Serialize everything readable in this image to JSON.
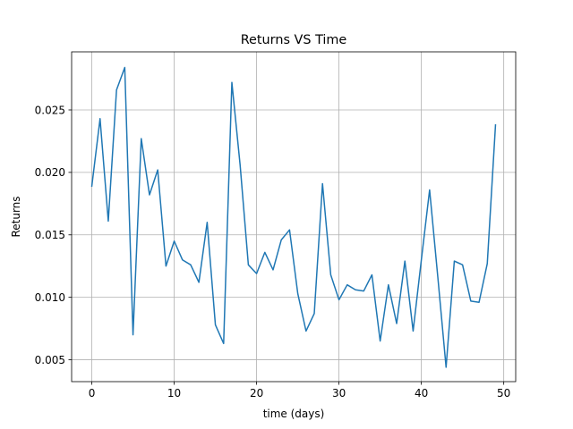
{
  "chart_data": {
    "type": "line",
    "title": "Returns VS Time",
    "xlabel": "time (days)",
    "ylabel": "Returns",
    "xlim": [
      -2.45,
      51.45
    ],
    "ylim": [
      0.00325,
      0.02965
    ],
    "x_ticks": [
      0,
      10,
      20,
      30,
      40,
      50
    ],
    "x_tick_labels": [
      "0",
      "10",
      "20",
      "30",
      "40",
      "50"
    ],
    "y_ticks": [
      0.005,
      0.01,
      0.015,
      0.02,
      0.025
    ],
    "y_tick_labels": [
      "0.005",
      "0.010",
      "0.015",
      "0.020",
      "0.025"
    ],
    "grid": true,
    "line_color": "#1f77b4",
    "series": [
      {
        "x": [
          0,
          1,
          2,
          3,
          4,
          5,
          6,
          7,
          8,
          9,
          10,
          11,
          12,
          13,
          14,
          15,
          16,
          17,
          18,
          19,
          20,
          21,
          22,
          23,
          24,
          25,
          26,
          27,
          28,
          29,
          30,
          31,
          32,
          33,
          34,
          35,
          36,
          37,
          38,
          39,
          40,
          41,
          42,
          43,
          44,
          45,
          46,
          47,
          48,
          49
        ],
        "values": [
          0.0189,
          0.0243,
          0.0161,
          0.0266,
          0.0284,
          0.007,
          0.0227,
          0.0182,
          0.0202,
          0.0125,
          0.0145,
          0.013,
          0.0126,
          0.0112,
          0.016,
          0.0078,
          0.0063,
          0.0272,
          0.0206,
          0.0126,
          0.0119,
          0.0136,
          0.0122,
          0.0146,
          0.0154,
          0.0103,
          0.0073,
          0.0087,
          0.0191,
          0.0118,
          0.0098,
          0.011,
          0.0106,
          0.0105,
          0.0118,
          0.0065,
          0.011,
          0.0079,
          0.0129,
          0.0073,
          0.013,
          0.0186,
          0.0116,
          0.0044,
          0.0129,
          0.0126,
          0.0097,
          0.0096,
          0.0127,
          0.0238
        ]
      }
    ]
  }
}
